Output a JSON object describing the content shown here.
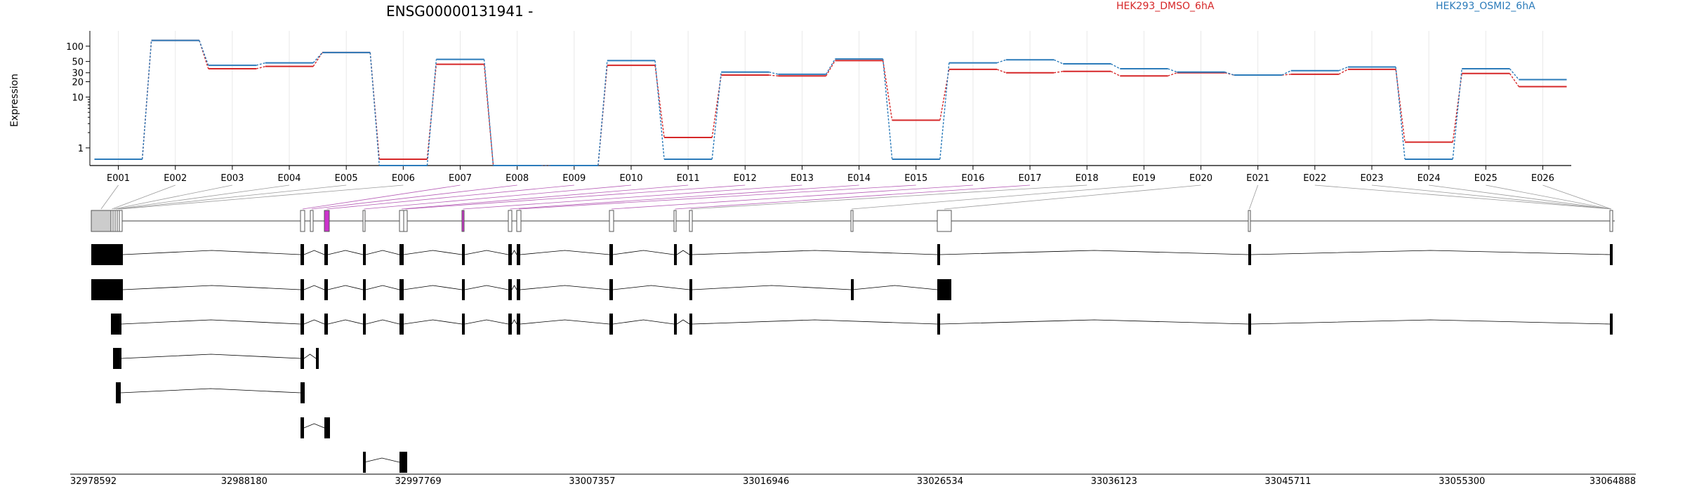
{
  "title": "ENSG00000131941 -",
  "legend": [
    {
      "label": "HEK293_DMSO_6hA",
      "color": "#d62728"
    },
    {
      "label": "HEK293_OSMI2_6hA",
      "color": "#2b7bba"
    }
  ],
  "colors": {
    "highlight": "#cc33cc",
    "exon_fill": "#000000",
    "grid": "#e8e8e8"
  },
  "chart_data": {
    "type": "line",
    "title": "ENSG00000131941 -",
    "ylabel": "Expression",
    "yscale": "log",
    "ylim": [
      0.45,
      200
    ],
    "yticks": [
      1,
      10,
      20,
      30,
      50,
      100
    ],
    "grid": true,
    "legend_placement": "top-right",
    "categories": [
      "E001",
      "E002",
      "E003",
      "E004",
      "E005",
      "E006",
      "E007",
      "E008",
      "E009",
      "E010",
      "E011",
      "E012",
      "E013",
      "E014",
      "E015",
      "E016",
      "E017",
      "E018",
      "E019",
      "E020",
      "E021",
      "E022",
      "E023",
      "E024",
      "E025",
      "E026"
    ],
    "series": [
      {
        "name": "HEK293_DMSO_6hA",
        "color": "#d62728",
        "values": [
          0.6,
          130,
          36,
          40,
          75,
          0.6,
          44,
          0.45,
          0.45,
          42,
          1.6,
          27,
          26,
          52,
          3.5,
          35,
          30,
          32,
          26,
          30,
          27,
          28,
          35,
          1.3,
          29,
          16
        ]
      },
      {
        "name": "HEK293_OSMI2_6hA",
        "color": "#2b7bba",
        "values": [
          0.6,
          130,
          42,
          47,
          75,
          0.45,
          55,
          0.45,
          0.45,
          52,
          0.6,
          31,
          28,
          56,
          0.6,
          47,
          54,
          45,
          36,
          31,
          27,
          33,
          39,
          0.6,
          36,
          22
        ]
      }
    ]
  },
  "genome": {
    "coordinates": [
      "32978592",
      "32988180",
      "32997769",
      "33007357",
      "33016946",
      "33026534",
      "33036123",
      "33045711",
      "33055300",
      "33064888"
    ],
    "range": [
      32978592,
      33064888
    ]
  }
}
